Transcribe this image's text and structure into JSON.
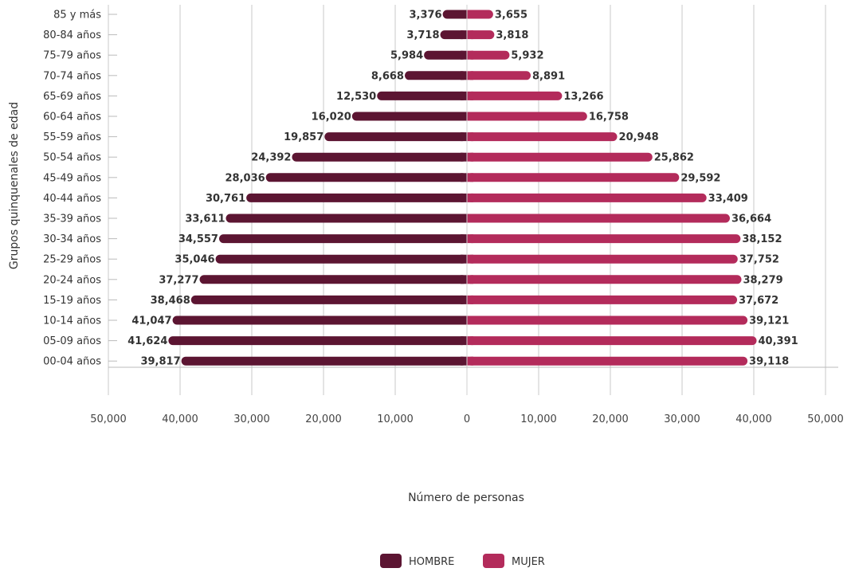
{
  "chart_data": {
    "type": "bar",
    "orientation": "horizontal",
    "subtype": "population-pyramid",
    "ylabel": "Grupos quinquenales de edad",
    "xlabel": "Número de personas",
    "xlim": [
      -50000,
      50000
    ],
    "x_ticks": [
      -50000,
      -40000,
      -30000,
      -20000,
      -10000,
      0,
      10000,
      20000,
      30000,
      40000,
      50000
    ],
    "x_tick_labels": [
      "50,000",
      "40,000",
      "30,000",
      "20,000",
      "10,000",
      "0",
      "10,000",
      "20,000",
      "30,000",
      "40,000",
      "50,000"
    ],
    "grid": "vertical",
    "legend_position": "bottom",
    "categories": [
      "85 y más",
      "80-84 años",
      "75-79 años",
      "70-74 años",
      "65-69 años",
      "60-64 años",
      "55-59 años",
      "50-54 años",
      "45-49 años",
      "40-44 años",
      "35-39 años",
      "30-34 años",
      "25-29 años",
      "20-24 años",
      "15-19 años",
      "10-14 años",
      "05-09 años",
      "00-04 años"
    ],
    "series": [
      {
        "name": "HOMBRE",
        "color": "#5c1532",
        "side": "left",
        "values": [
          3376,
          3718,
          5984,
          8668,
          12530,
          16020,
          19857,
          24392,
          28036,
          30761,
          33611,
          34557,
          35046,
          37277,
          38468,
          41047,
          41624,
          39817
        ],
        "labels": [
          "3,376",
          "3,718",
          "5,984",
          "8,668",
          "12,530",
          "16,020",
          "19,857",
          "24,392",
          "28,036",
          "30,761",
          "33,611",
          "34,557",
          "35,046",
          "37,277",
          "38,468",
          "41,047",
          "41,624",
          "39,817"
        ]
      },
      {
        "name": "MUJER",
        "color": "#b32b5b",
        "side": "right",
        "values": [
          3655,
          3818,
          5932,
          8891,
          13266,
          16758,
          20948,
          25862,
          29592,
          33409,
          36664,
          38152,
          37752,
          38279,
          37672,
          39121,
          40391,
          39118
        ],
        "labels": [
          "3,655",
          "3,818",
          "5,932",
          "8,891",
          "13,266",
          "16,758",
          "20,948",
          "25,862",
          "29,592",
          "33,409",
          "36,664",
          "38,152",
          "37,752",
          "38,279",
          "37,672",
          "39,121",
          "40,391",
          "39,118"
        ]
      }
    ]
  }
}
